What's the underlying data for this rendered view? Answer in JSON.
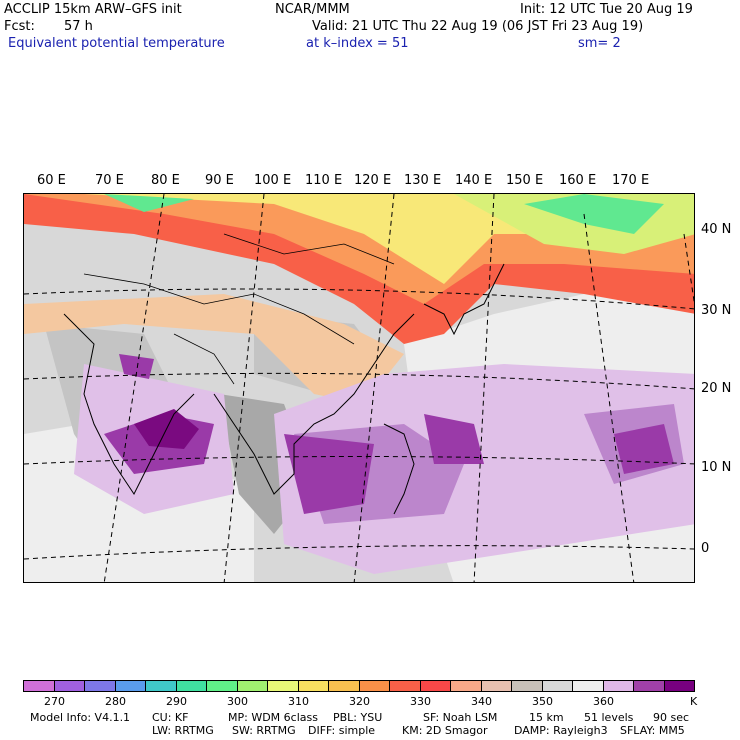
{
  "header": {
    "model_line": "ACCLIP 15km ARW–GFS init",
    "center": "NCAR/MMM",
    "init": "Init: 12 UTC Tue 20 Aug 19",
    "fcst_label": "Fcst:",
    "fcst_value": "57 h",
    "valid": "Valid: 21 UTC Thu 22 Aug 19 (06 JST Fri 23 Aug 19)",
    "field_name": "Equivalent potential temperature",
    "level": "at k–index =  51",
    "smoothing": "sm= 2"
  },
  "map": {
    "lon_labels": [
      "60 E",
      "70 E",
      "80 E",
      "90 E",
      "100 E",
      "110 E",
      "120 E",
      "130 E",
      "140 E",
      "150 E",
      "160 E",
      "170 E"
    ],
    "lat_labels": [
      "40 N",
      "30 N",
      "20 N",
      "10 N",
      "0"
    ],
    "field_colors": {
      "background": "#d8d8d8",
      "gray_light": "#eeeeee",
      "gray_mid": "#c4c4c4",
      "gray_dark": "#a8a8a8",
      "tan": "#f4c8a0",
      "red": "#f86048",
      "orange": "#fa9a5a",
      "yellow": "#f8e878",
      "lightgreen": "#d8f078",
      "green": "#60e890",
      "lavender": "#e0c0e8",
      "violet": "#bc86cc",
      "purple": "#9a3aa8",
      "darkpurple": "#7a0a80"
    }
  },
  "colorbar": {
    "colors": [
      "#d070d8",
      "#a060e0",
      "#7e78e8",
      "#5a9cec",
      "#40c8c8",
      "#40e0a0",
      "#60f088",
      "#a0f070",
      "#e8f878",
      "#f8e060",
      "#f8c050",
      "#fa9048",
      "#f86048",
      "#f84848",
      "#f8a888",
      "#e8c0b0",
      "#c8c0b8",
      "#d8d8d8",
      "#eeeeee",
      "#e0b8e8",
      "#a040a8",
      "#780080"
    ],
    "tick_labels": [
      "270",
      "280",
      "290",
      "300",
      "310",
      "320",
      "330",
      "340",
      "350",
      "360"
    ],
    "unit": "K"
  },
  "footer": {
    "line1": [
      "Model Info: V4.1.1",
      "CU: KF",
      "MP: WDM 6class",
      "PBL: YSU",
      "SF: Noah LSM",
      "15 km",
      "51 levels",
      "90 sec"
    ],
    "line2": [
      "LW: RRTMG",
      "SW: RRTMG",
      "DIFF: simple",
      "KM: 2D Smagor",
      "DAMP: Rayleigh3",
      "SFLAY: MM5"
    ]
  }
}
